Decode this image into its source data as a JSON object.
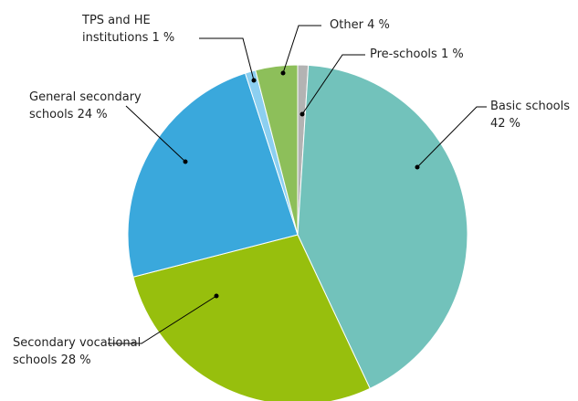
{
  "chart_data": {
    "type": "pie",
    "categories": [
      "Pre-schools",
      "Basic schools",
      "Secondary vocational schools",
      "General secondary schools",
      "TPS and HE institutions",
      "Other"
    ],
    "values": [
      1,
      42,
      28,
      24,
      1,
      4
    ],
    "value_labels": [
      "1 %",
      "42 %",
      "28 %",
      "24 %",
      "1 %",
      "4 %"
    ],
    "colors": [
      "#b3b3b3",
      "#72c2bb",
      "#97bf0d",
      "#3aa8dc",
      "#8ccff0",
      "#8dbf5a"
    ]
  }
}
